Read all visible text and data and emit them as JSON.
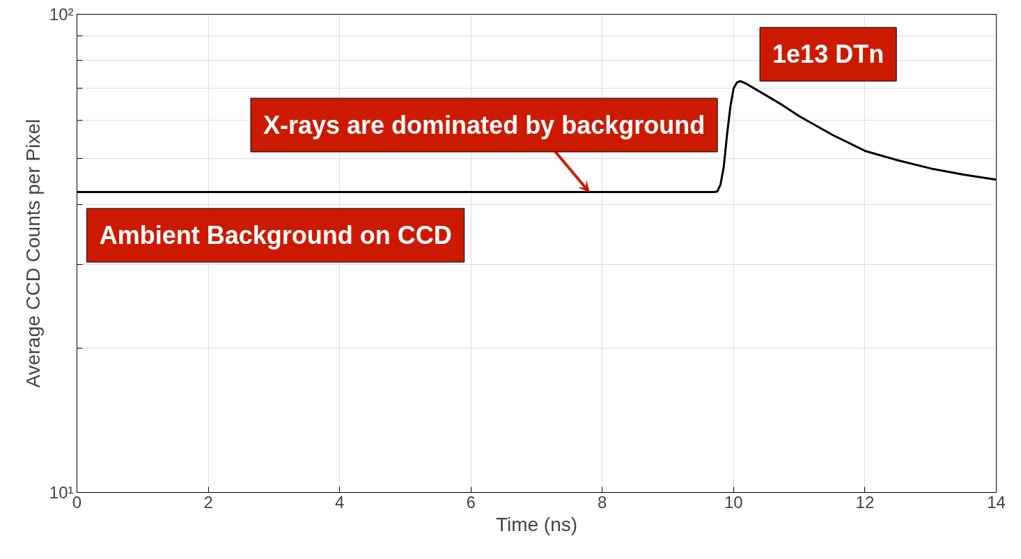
{
  "chart_data": {
    "type": "line",
    "xlabel": "Time (ns)",
    "ylabel": "Average CCD Counts per Pixel",
    "x": [
      0,
      9.7,
      9.75,
      9.8,
      9.85,
      9.9,
      9.95,
      10.0,
      10.05,
      10.1,
      10.2,
      10.35,
      10.5,
      10.75,
      11,
      11.5,
      12,
      12.5,
      13,
      13.5,
      14
    ],
    "series": [
      {
        "color": "#000000",
        "values": [
          42.5,
          42.5,
          42.6,
          44,
          48,
          56,
          64,
          70,
          72,
          72.5,
          71.5,
          69.5,
          67.6,
          64.5,
          61.2,
          56,
          51.8,
          49.5,
          47.6,
          46.2,
          45.1
        ]
      }
    ],
    "xlim": [
      0,
      14
    ],
    "xticks": [
      0,
      2,
      4,
      6,
      8,
      10,
      12,
      14
    ],
    "ylim": [
      10,
      100
    ],
    "log": "y",
    "yticks": [
      {
        "value": 10,
        "label": "10¹"
      },
      {
        "value": 20,
        "label": null
      },
      {
        "value": 30,
        "label": null
      },
      {
        "value": 40,
        "label": null
      },
      {
        "value": 50,
        "label": null
      },
      {
        "value": 60,
        "label": null
      },
      {
        "value": 70,
        "label": null
      },
      {
        "value": 80,
        "label": null
      },
      {
        "value": 90,
        "label": null
      },
      {
        "value": 100,
        "label": "10²"
      }
    ],
    "grid": true,
    "marker": "none",
    "line_style": "solid",
    "annotations": [
      "Ambient Background on CCD",
      "1e13 DTn",
      {
        "text": "X-rays are dominated by background",
        "x": 7.8,
        "y": 42.5
      }
    ]
  }
}
